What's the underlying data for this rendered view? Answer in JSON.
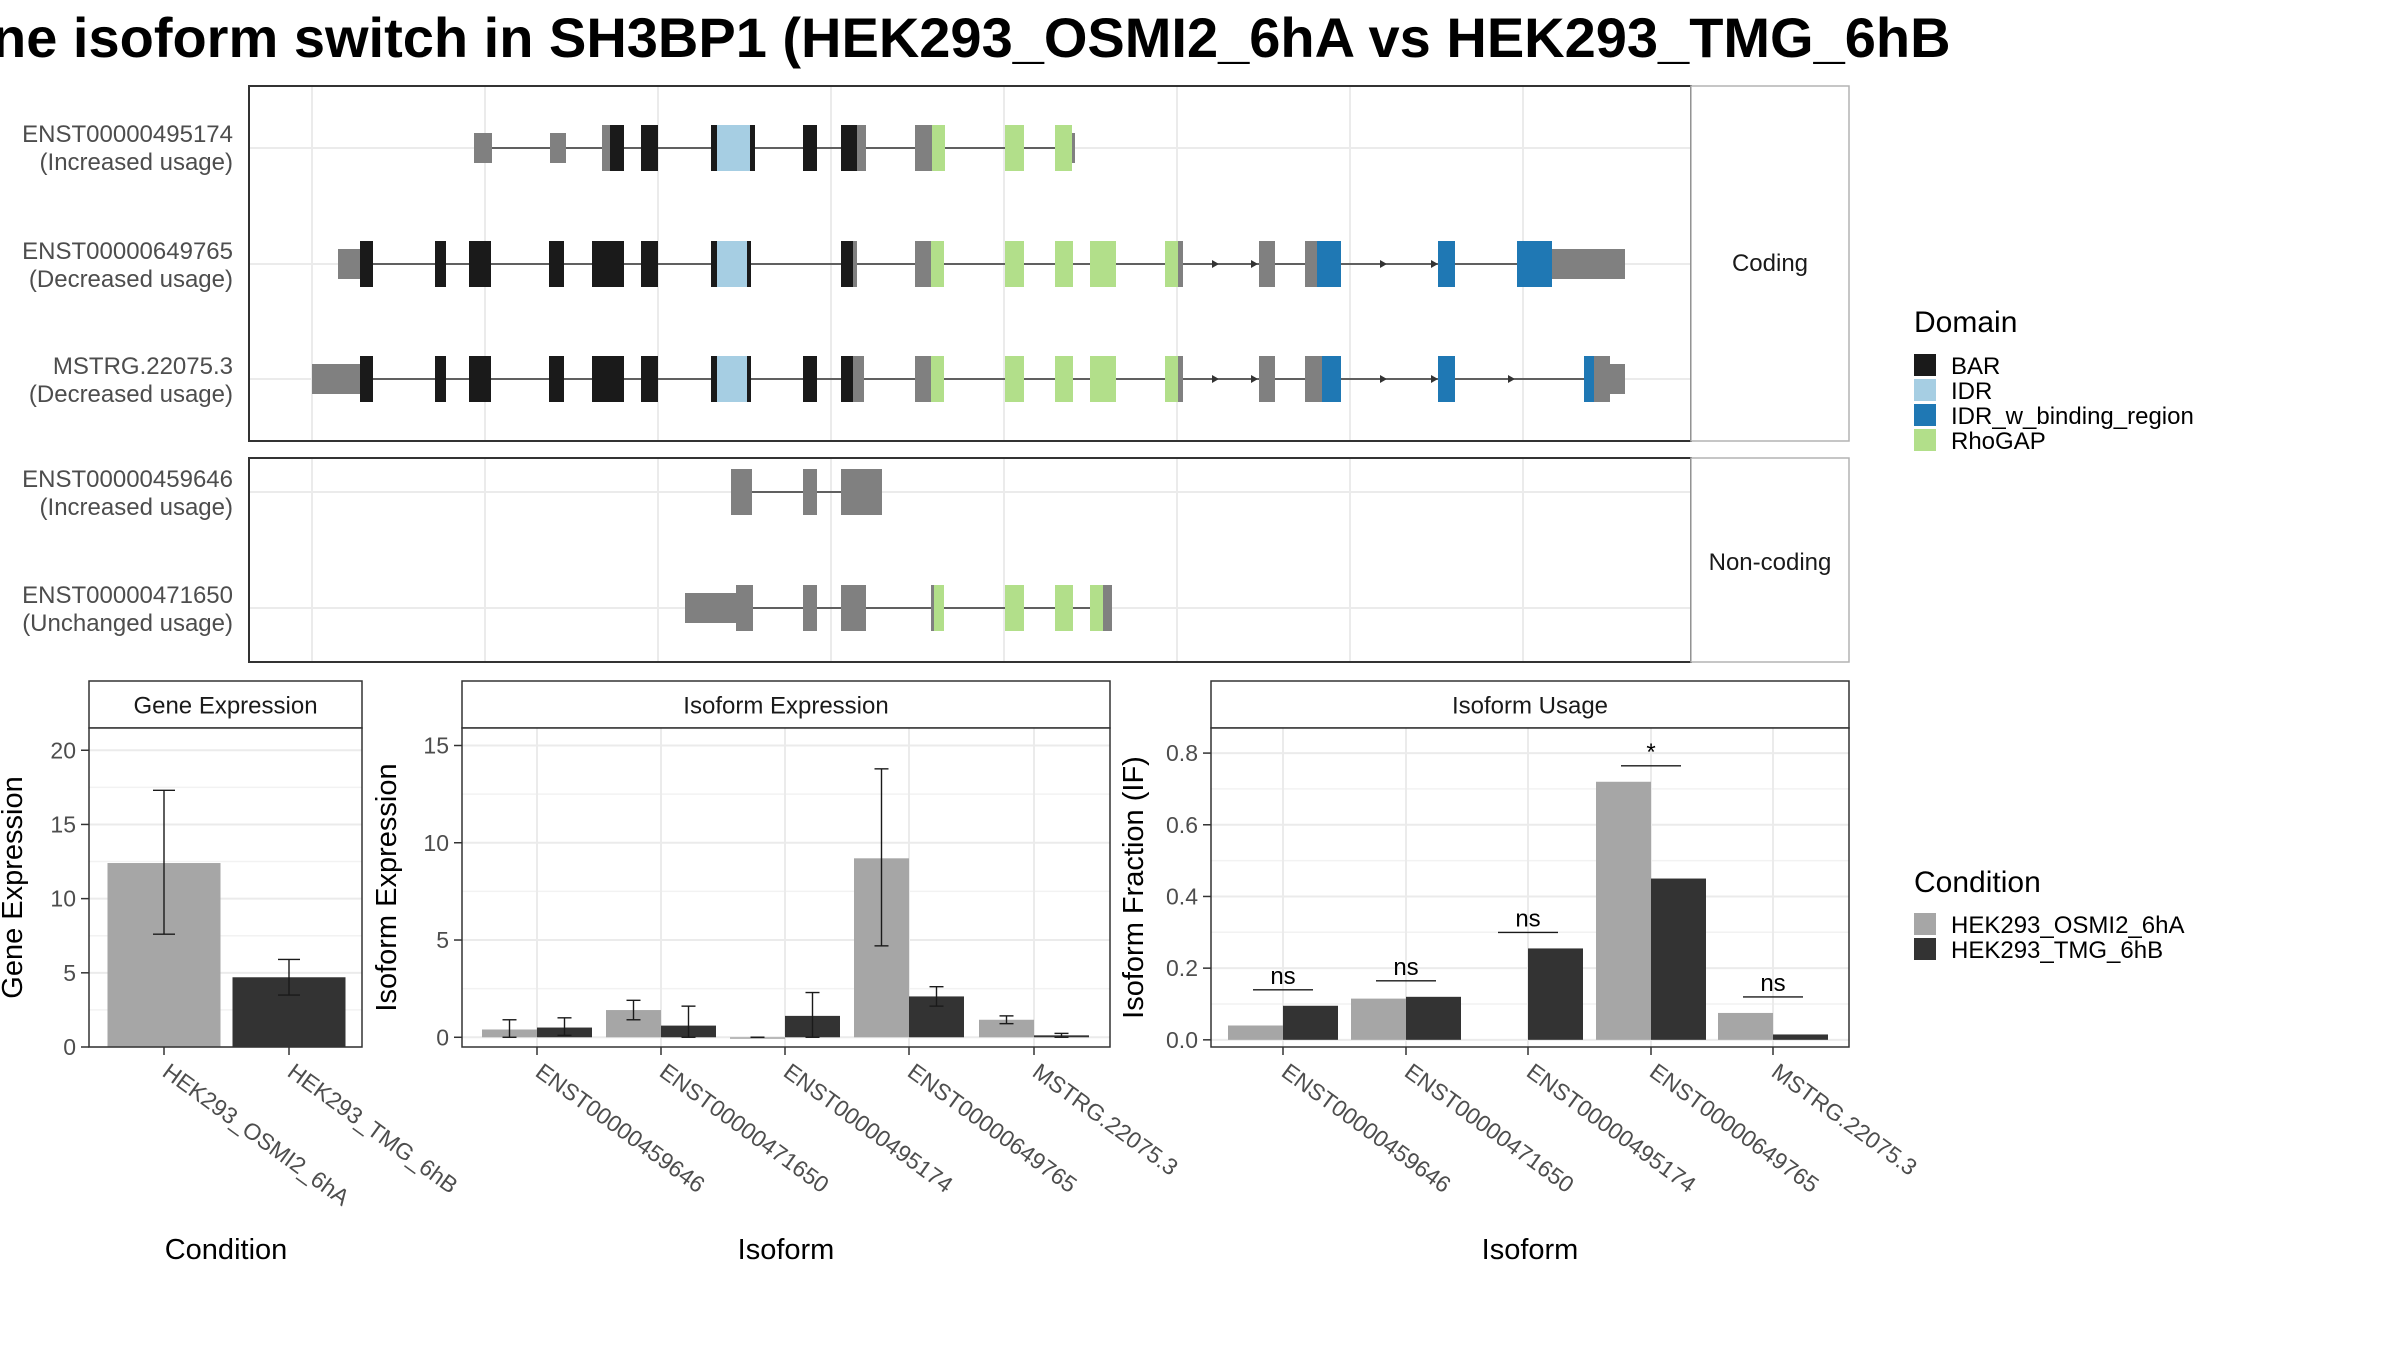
{
  "title": "ne isoform switch in SH3BP1 (HEK293_OSMI2_6hA vs HEK293_TMG_6hB",
  "colors": {
    "BAR": "#1a1a1a",
    "IDR": "#a6cee3",
    "IDR_w_binding_region": "#1f78b4",
    "RhoGAP": "#b2df8a",
    "exon": "#808080",
    "condA": "#a6a6a6",
    "condB": "#333333",
    "grid": "#ebebeb",
    "strip": "#ffffff"
  },
  "panels": {
    "coding_label": "Coding",
    "noncoding_label": "Non-coding"
  },
  "isoforms": [
    {
      "id": "ENST00000495174",
      "usage": "(Increased usage)",
      "group": "Coding"
    },
    {
      "id": "ENST00000649765",
      "usage": "(Decreased usage)",
      "group": "Coding"
    },
    {
      "id": "MSTRG.22075.3",
      "usage": "(Decreased usage)",
      "group": "Coding"
    },
    {
      "id": "ENST00000459646",
      "usage": "(Increased usage)",
      "group": "Non-coding"
    },
    {
      "id": "ENST00000471650",
      "usage": "(Unchanged usage)",
      "group": "Non-coding"
    }
  ],
  "legends": {
    "domain_title": "Domain",
    "domains": [
      "BAR",
      "IDR",
      "IDR_w_binding_region",
      "RhoGAP"
    ],
    "condition_title": "Condition",
    "conditions": [
      "HEK293_OSMI2_6hA",
      "HEK293_TMG_6hB"
    ]
  },
  "chart_data": [
    {
      "type": "bar",
      "title": "Gene Expression",
      "xlabel": "Condition",
      "ylabel": "Gene Expression",
      "categories": [
        "HEK293_OSMI2_6hA",
        "HEK293_TMG_6hB"
      ],
      "values": [
        12.4,
        4.7
      ],
      "error_low": [
        7.6,
        3.5
      ],
      "error_high": [
        17.3,
        5.9
      ],
      "ylim": [
        0,
        21.5
      ],
      "yticks": [
        0,
        5,
        10,
        15,
        20
      ]
    },
    {
      "type": "bar",
      "title": "Isoform Expression",
      "xlabel": "Isoform",
      "ylabel": "Isoform Expression",
      "categories": [
        "ENST00000459646",
        "ENST00000471650",
        "ENST00000495174",
        "ENST00000649765",
        "MSTRG.22075.3"
      ],
      "series": [
        {
          "name": "HEK293_OSMI2_6hA",
          "values": [
            0.4,
            1.4,
            0.0,
            9.2,
            0.9
          ],
          "error_low": [
            0.0,
            0.9,
            0.0,
            4.7,
            0.7
          ],
          "error_high": [
            0.9,
            1.9,
            0.0,
            13.8,
            1.1
          ]
        },
        {
          "name": "HEK293_TMG_6hB",
          "values": [
            0.5,
            0.6,
            1.1,
            2.1,
            0.1
          ],
          "error_low": [
            0.1,
            0.0,
            0.0,
            1.6,
            0.0
          ],
          "error_high": [
            1.0,
            1.6,
            2.3,
            2.6,
            0.2
          ]
        }
      ],
      "ylim": [
        -0.5,
        15.9
      ],
      "yticks": [
        0,
        5,
        10,
        15
      ]
    },
    {
      "type": "bar",
      "title": "Isoform Usage",
      "xlabel": "Isoform",
      "ylabel": "Isoform Fraction (IF)",
      "categories": [
        "ENST00000459646",
        "ENST00000471650",
        "ENST00000495174",
        "ENST00000649765",
        "MSTRG.22075.3"
      ],
      "series": [
        {
          "name": "HEK293_OSMI2_6hA",
          "values": [
            0.04,
            0.115,
            0.0,
            0.72,
            0.075
          ]
        },
        {
          "name": "HEK293_TMG_6hB",
          "values": [
            0.095,
            0.12,
            0.255,
            0.45,
            0.015
          ]
        }
      ],
      "significance": [
        "ns",
        "ns",
        "ns",
        "*",
        "ns"
      ],
      "ylim": [
        -0.02,
        0.87
      ],
      "yticks": [
        0.0,
        0.2,
        0.4,
        0.6,
        0.8
      ]
    }
  ]
}
